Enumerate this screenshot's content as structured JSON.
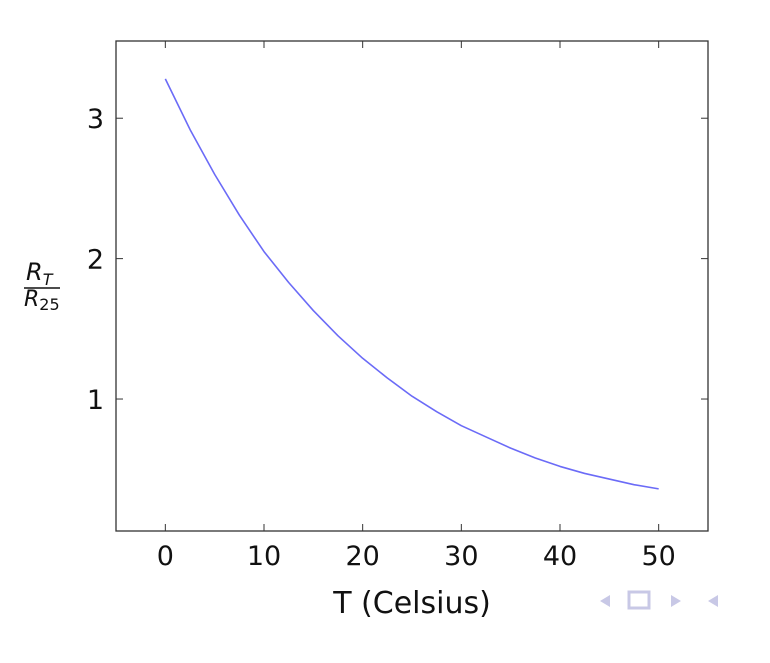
{
  "chart_data": {
    "type": "line",
    "title": "",
    "xlabel": "T (Celsius)",
    "ylabel": {
      "numerator": {
        "main": "R",
        "sub": "T"
      },
      "denominator": {
        "main": "R",
        "sub": "25"
      }
    },
    "xlim": [
      -5,
      55
    ],
    "ylim": [
      0.06,
      3.55
    ],
    "xticks": [
      0,
      10,
      20,
      30,
      40,
      50
    ],
    "yticks": [
      1,
      2,
      3
    ],
    "grid": false,
    "legend": "none",
    "series": [
      {
        "color": "#6b6bf7",
        "x": [
          0,
          2.5,
          5,
          7.5,
          10,
          12.5,
          15,
          17.5,
          20,
          22.5,
          25,
          27.5,
          30,
          32.5,
          35,
          37.5,
          40,
          42.5,
          45,
          47.5,
          50
        ],
        "y": [
          3.28,
          2.92,
          2.6,
          2.31,
          2.05,
          1.83,
          1.63,
          1.45,
          1.29,
          1.15,
          1.02,
          0.91,
          0.81,
          0.73,
          0.65,
          0.58,
          0.52,
          0.47,
          0.43,
          0.39,
          0.36
        ]
      }
    ]
  },
  "nav": {
    "icons": [
      "triangle-left-icon",
      "frame-icon",
      "triangle-right-icon",
      "triangle-left-icon"
    ],
    "color": "#c8c8e6"
  }
}
